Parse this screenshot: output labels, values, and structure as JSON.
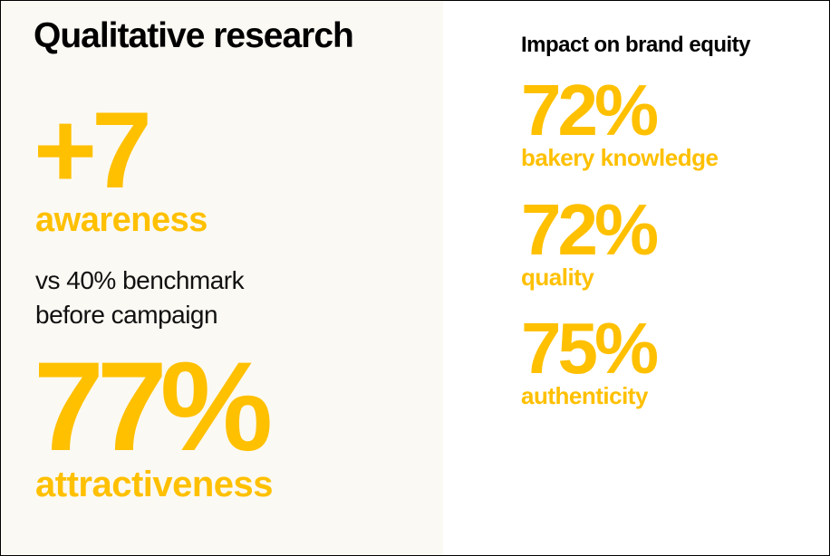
{
  "left": {
    "title": "Qualitative research",
    "awareness_value": "+7",
    "awareness_label": "awareness",
    "benchmark_line1": "vs 40% benchmark",
    "benchmark_line2": "before campaign",
    "attractiveness_value": "77%",
    "attractiveness_label": "attractiveness"
  },
  "right": {
    "title": "Impact on brand equity",
    "metrics": [
      {
        "value": "72%",
        "label": "bakery knowledge"
      },
      {
        "value": "72%",
        "label": "quality"
      },
      {
        "value": "75%",
        "label": "authenticity"
      }
    ]
  },
  "colors": {
    "accent": "#ffc000",
    "panel_background": "#fbf9f3",
    "text": "#000000"
  }
}
